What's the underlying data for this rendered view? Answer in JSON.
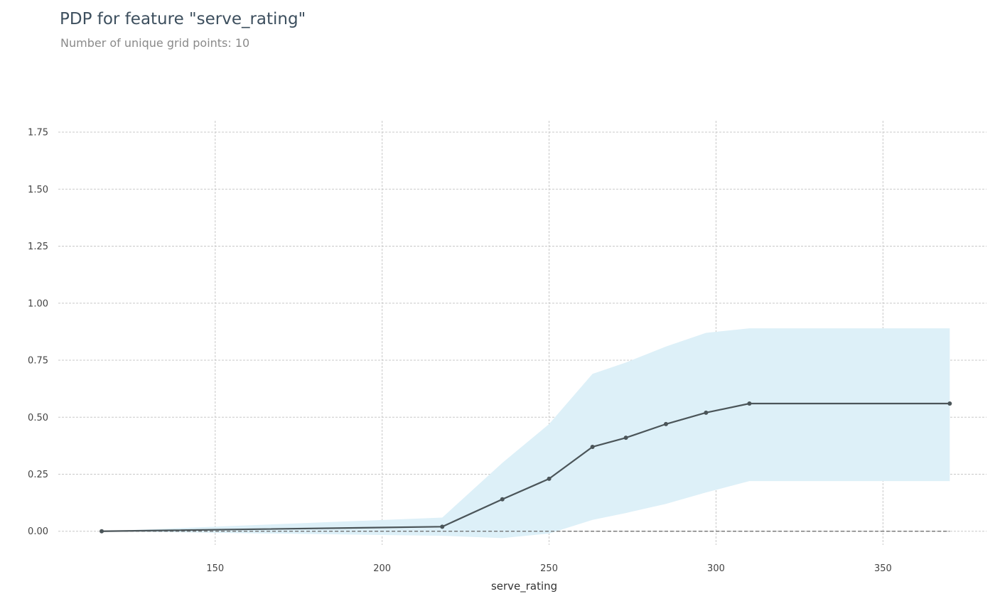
{
  "title": "PDP for feature \"serve_rating\"",
  "subtitle": "Number of unique grid points: 10",
  "chart_data": {
    "type": "line",
    "xlabel": "serve_rating",
    "ylabel": "",
    "xlim": [
      103,
      381
    ],
    "ylim": [
      -0.06,
      1.8
    ],
    "xticks": [
      150,
      200,
      250,
      300,
      350
    ],
    "xtick_labels": [
      "150",
      "200",
      "250",
      "300",
      "350"
    ],
    "yticks": [
      0.0,
      0.25,
      0.5,
      0.75,
      1.0,
      1.25,
      1.5,
      1.75
    ],
    "ytick_labels": [
      "0.00",
      "0.25",
      "0.50",
      "0.75",
      "1.00",
      "1.25",
      "1.50",
      "1.75"
    ],
    "grid": true,
    "series": [
      {
        "x": [
          116,
          218,
          236,
          250,
          263,
          273,
          285,
          297,
          310,
          370
        ],
        "y": [
          0.0,
          0.02,
          0.14,
          0.23,
          0.37,
          0.41,
          0.47,
          0.52,
          0.56,
          0.56
        ],
        "color": "#4b5559"
      }
    ],
    "confidence_band": {
      "x": [
        116,
        218,
        236,
        250,
        263,
        273,
        285,
        297,
        310,
        370
      ],
      "upper": [
        0.0,
        0.06,
        0.3,
        0.47,
        0.69,
        0.74,
        0.81,
        0.87,
        0.89,
        0.89
      ],
      "lower": [
        0.0,
        -0.02,
        -0.03,
        -0.01,
        0.05,
        0.08,
        0.12,
        0.17,
        0.22,
        0.22
      ],
      "color": "#ddf0f8"
    },
    "baseline": {
      "y": 0.0,
      "style": "dashed",
      "color": "#666666"
    }
  }
}
